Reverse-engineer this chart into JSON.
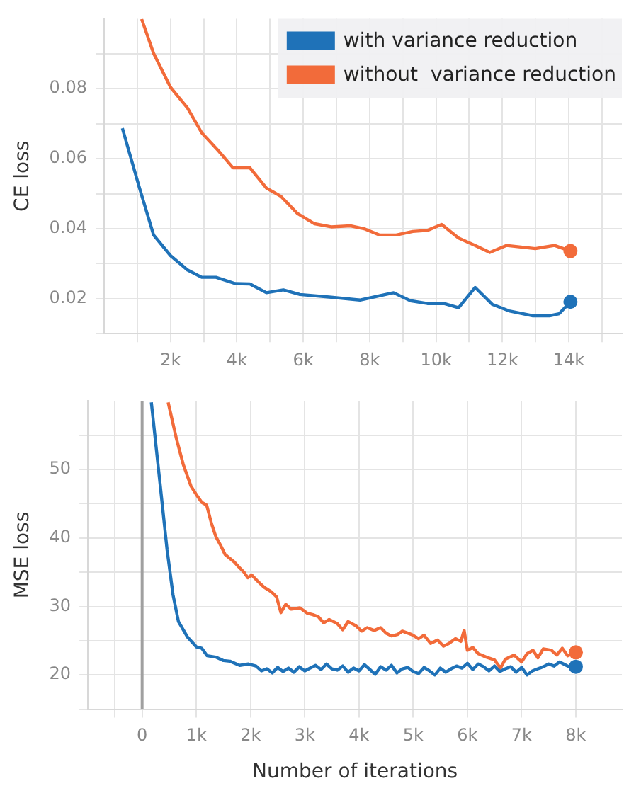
{
  "chart_data": [
    {
      "type": "line",
      "ylabel": "CE loss",
      "legend": "top right",
      "grid": true,
      "xlim": [
        0,
        15600
      ],
      "ylim": [
        0.01,
        0.1
      ],
      "xticks": [
        {
          "value": 1000,
          "label": null
        },
        {
          "value": 2000,
          "label": "2k"
        },
        {
          "value": 3000,
          "label": null
        },
        {
          "value": 4000,
          "label": "4k"
        },
        {
          "value": 5000,
          "label": null
        },
        {
          "value": 6000,
          "label": "6k"
        },
        {
          "value": 7000,
          "label": null
        },
        {
          "value": 8000,
          "label": "8k"
        },
        {
          "value": 9000,
          "label": null
        },
        {
          "value": 10000,
          "label": "10k"
        },
        {
          "value": 11000,
          "label": null
        },
        {
          "value": 12000,
          "label": "12k"
        },
        {
          "value": 13000,
          "label": null
        },
        {
          "value": 14000,
          "label": "14k"
        },
        {
          "value": 15000,
          "label": null
        }
      ],
      "yticks": [
        {
          "value": 0.01,
          "label": null
        },
        0.02,
        {
          "value": 0.03,
          "label": null
        },
        0.04,
        {
          "value": 0.05,
          "label": null
        },
        0.06,
        {
          "value": 0.07,
          "label": null
        },
        0.08,
        {
          "value": 0.09,
          "label": null
        }
      ],
      "series": [
        {
          "name": "with variance reduction",
          "color": "#1f72b8",
          "x": [
            550,
            1060,
            1490,
            2000,
            2510,
            2940,
            3370,
            3950,
            4390,
            4890,
            5400,
            5900,
            6840,
            7710,
            8720,
            9230,
            9740,
            10240,
            10680,
            11180,
            11690,
            12200,
            12920,
            13420,
            13710,
            14050
          ],
          "values": [
            0.0687,
            0.0518,
            0.0382,
            0.0323,
            0.0282,
            0.0261,
            0.0261,
            0.0243,
            0.0242,
            0.0217,
            0.0225,
            0.0212,
            0.0204,
            0.0196,
            0.0217,
            0.0194,
            0.0186,
            0.0186,
            0.0174,
            0.0232,
            0.0184,
            0.0165,
            0.0151,
            0.0151,
            0.0157,
            0.0191
          ]
        },
        {
          "name": "without  variance reduction",
          "color": "#f26b3a",
          "x": [
            1130,
            1490,
            2000,
            2510,
            2940,
            3450,
            3880,
            4390,
            4890,
            5330,
            5830,
            6340,
            6840,
            7420,
            7860,
            8290,
            8800,
            9300,
            9740,
            10170,
            10680,
            11180,
            11620,
            12120,
            12990,
            13570,
            14050
          ],
          "values": [
            0.0999,
            0.0901,
            0.0804,
            0.0745,
            0.0674,
            0.0622,
            0.0574,
            0.0574,
            0.0516,
            0.0492,
            0.0443,
            0.0414,
            0.0405,
            0.0408,
            0.0399,
            0.0382,
            0.0382,
            0.0392,
            0.0395,
            0.0412,
            0.0373,
            0.0352,
            0.0332,
            0.0352,
            0.0343,
            0.0352,
            0.0336
          ]
        }
      ]
    },
    {
      "type": "line",
      "ylabel": "MSE loss",
      "xlabel": "Number of iterations",
      "grid": true,
      "xlim": [
        -1000,
        8850
      ],
      "ylim": [
        15,
        60
      ],
      "xticks": [
        {
          "value": -500,
          "label": null
        },
        0,
        {
          "value": 1000,
          "label": "1k"
        },
        {
          "value": 2000,
          "label": "2k"
        },
        {
          "value": 3000,
          "label": "3k"
        },
        {
          "value": 4000,
          "label": "4k"
        },
        {
          "value": 5000,
          "label": "5k"
        },
        {
          "value": 6000,
          "label": "6k"
        },
        {
          "value": 7000,
          "label": "7k"
        },
        {
          "value": 8000,
          "label": "8k"
        }
      ],
      "yticks": [
        {
          "value": 15,
          "label": null
        },
        20,
        {
          "value": 25,
          "label": null
        },
        30,
        {
          "value": 35,
          "label": null
        },
        40,
        {
          "value": 45,
          "label": null
        },
        50,
        {
          "value": 55,
          "label": null
        }
      ],
      "ref_lines": [
        {
          "axis": "x",
          "value": 0,
          "color": "#a0a0a0"
        }
      ],
      "series": [
        {
          "color": "#1f72b8",
          "x": [
            170,
            330,
            460,
            570,
            670,
            840,
            1000,
            1100,
            1200,
            1360,
            1500,
            1620,
            1800,
            1960,
            2100,
            2200,
            2300,
            2400,
            2500,
            2600,
            2700,
            2800,
            2900,
            3000,
            3100,
            3200,
            3300,
            3400,
            3500,
            3600,
            3700,
            3800,
            3900,
            4000,
            4100,
            4200,
            4300,
            4400,
            4500,
            4600,
            4700,
            4800,
            4900,
            5000,
            5100,
            5200,
            5300,
            5400,
            5500,
            5600,
            5700,
            5800,
            5900,
            6000,
            6100,
            6200,
            6300,
            6400,
            6500,
            6600,
            6700,
            6800,
            6900,
            7000,
            7100,
            7200,
            7300,
            7400,
            7500,
            7600,
            7700,
            7800,
            7900,
            8000
          ],
          "values": [
            59.8,
            48.0,
            38.3,
            31.7,
            27.8,
            25.5,
            24.1,
            23.9,
            22.8,
            22.6,
            22.1,
            22.0,
            21.4,
            21.6,
            21.3,
            20.6,
            20.9,
            20.3,
            21.1,
            20.5,
            21.0,
            20.4,
            21.2,
            20.6,
            21.0,
            21.4,
            20.8,
            21.6,
            20.9,
            20.7,
            21.3,
            20.4,
            21.0,
            20.6,
            21.5,
            20.8,
            20.1,
            21.2,
            20.7,
            21.4,
            20.3,
            20.9,
            21.1,
            20.5,
            20.2,
            21.1,
            20.6,
            20.0,
            21.0,
            20.4,
            20.9,
            21.3,
            21.0,
            21.7,
            20.8,
            21.6,
            21.2,
            20.6,
            21.3,
            20.5,
            20.9,
            21.2,
            20.4,
            21.1,
            20.0,
            20.6,
            20.9,
            21.2,
            21.6,
            21.3,
            21.9,
            21.5,
            21.1,
            21.2
          ]
        },
        {
          "color": "#f26b3a",
          "x": [
            480,
            630,
            760,
            900,
            1020,
            1100,
            1190,
            1280,
            1360,
            1450,
            1530,
            1620,
            1700,
            1780,
            1880,
            1950,
            2020,
            2130,
            2250,
            2390,
            2480,
            2560,
            2650,
            2750,
            2910,
            3050,
            3150,
            3250,
            3350,
            3450,
            3600,
            3700,
            3800,
            3940,
            4050,
            4150,
            4280,
            4400,
            4500,
            4600,
            4710,
            4800,
            4970,
            5100,
            5200,
            5320,
            5450,
            5560,
            5660,
            5780,
            5880,
            5940,
            6000,
            6100,
            6200,
            6350,
            6500,
            6610,
            6700,
            6860,
            7000,
            7100,
            7210,
            7300,
            7400,
            7550,
            7650,
            7750,
            7850,
            8000
          ],
          "values": [
            59.8,
            54.6,
            50.7,
            47.6,
            46.1,
            45.2,
            44.8,
            42.1,
            40.2,
            38.9,
            37.6,
            37.0,
            36.5,
            35.8,
            35.0,
            34.2,
            34.6,
            33.7,
            32.8,
            32.1,
            31.4,
            29.1,
            30.3,
            29.6,
            29.8,
            29.0,
            28.8,
            28.5,
            27.6,
            28.1,
            27.5,
            26.6,
            27.8,
            27.2,
            26.4,
            26.9,
            26.5,
            26.9,
            26.1,
            25.7,
            25.9,
            26.4,
            25.9,
            25.3,
            25.8,
            24.6,
            25.1,
            24.2,
            24.6,
            25.3,
            24.9,
            26.5,
            23.6,
            24.0,
            23.1,
            22.6,
            22.2,
            21.0,
            22.3,
            22.9,
            21.9,
            23.1,
            23.6,
            22.5,
            23.8,
            23.6,
            22.9,
            23.9,
            22.8,
            23.3
          ]
        }
      ]
    }
  ]
}
